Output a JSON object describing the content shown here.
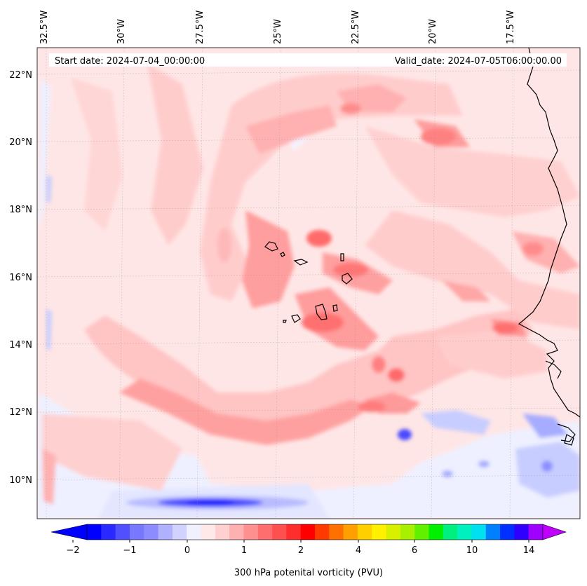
{
  "map": {
    "start_date_label": "Start date: 2024-07-04_00:00:00",
    "valid_date_label": "Valid_date: 2024-07-05T06:00:00.00",
    "lon_labels": [
      "32.5°W",
      "30°W",
      "27.5°W",
      "25°W",
      "22.5°W",
      "20°W",
      "17.5°W"
    ],
    "lat_labels": [
      "22°N",
      "20°N",
      "18°N",
      "16°N",
      "14°N",
      "12°N",
      "10°N"
    ],
    "field": "300 hPa potential vorticity",
    "projection_extent": {
      "lon_min": -32.6,
      "lon_max": -15.7,
      "lat_min": 8.9,
      "lat_max": 22.8
    },
    "colors": {
      "ocean_base": "#ffe4e4",
      "light_pink": "#ffc8c8",
      "mid_pink": "#ffa8a8",
      "strong_red": "#ff7a7a",
      "deep_red": "#ff4d4d",
      "light_blue": "#e8ecff",
      "mid_blue": "#c2c8ff",
      "deep_blue": "#1a1aff",
      "coast": "#000000"
    }
  },
  "colorbar": {
    "label": "300 hPa potenital vorticity (PVU)",
    "tick_labels": [
      "−2",
      "−1",
      "0",
      "1",
      "2",
      "4",
      "6",
      "10",
      "14"
    ],
    "colors": [
      "#0000ff",
      "#2828ff",
      "#5050ff",
      "#7878ff",
      "#8c8cff",
      "#b0b0ff",
      "#d2d2ff",
      "#f0f0ff",
      "#ffe8e8",
      "#ffd0d0",
      "#ffb0b0",
      "#ff9090",
      "#ff6e6e",
      "#ff5050",
      "#ff2e2e",
      "#ff0000",
      "#ff3a00",
      "#ff7000",
      "#ffa000",
      "#ffd000",
      "#fff000",
      "#d8f000",
      "#a8f000",
      "#60f000",
      "#00f000",
      "#00f080",
      "#00f0c0",
      "#00e0f0",
      "#0080ff",
      "#0030ff",
      "#3000ff",
      "#a000ff"
    ],
    "min_arrow_color": "#0000ff",
    "max_arrow_color": "#c000ff"
  }
}
